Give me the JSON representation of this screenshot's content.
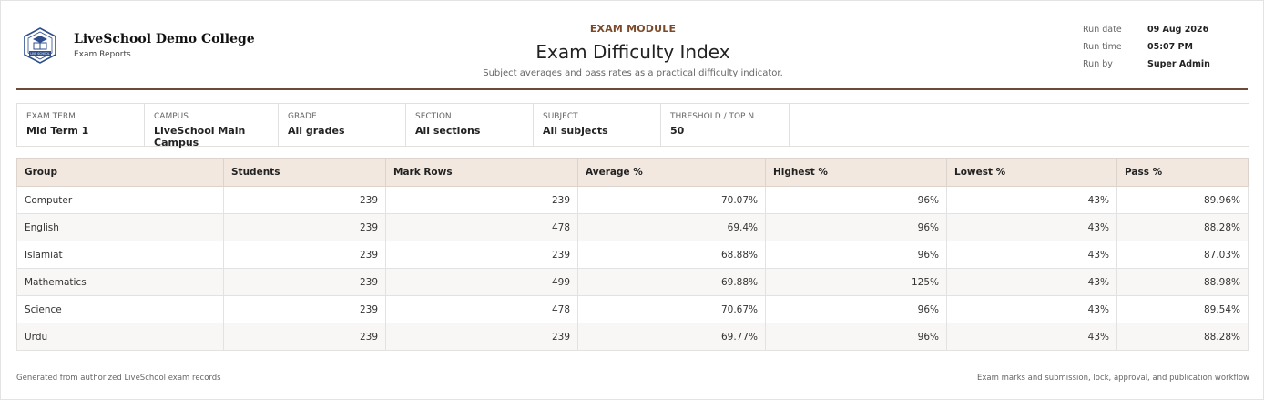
{
  "brand": {
    "name": "LiveSchool Demo College",
    "subtitle": "Exam Reports",
    "logo_icon": "school-crest-icon",
    "logo_text": "LIVE SCHOOL"
  },
  "header": {
    "module": "EXAM MODULE",
    "title": "Exam Difficulty Index",
    "subtitle": "Subject averages and pass rates as a practical difficulty indicator."
  },
  "run": {
    "items": [
      {
        "label": "Run date",
        "value": "09 Aug 2026"
      },
      {
        "label": "Run time",
        "value": "05:07 PM"
      },
      {
        "label": "Run by",
        "value": "Super Admin"
      }
    ]
  },
  "filters": [
    {
      "label": "Exam Term",
      "value": "Mid Term 1"
    },
    {
      "label": "Campus",
      "value": "LiveSchool Main Campus"
    },
    {
      "label": "Grade",
      "value": "All grades"
    },
    {
      "label": "Section",
      "value": "All sections"
    },
    {
      "label": "Subject",
      "value": "All subjects"
    },
    {
      "label": "Threshold / Top N",
      "value": "50"
    }
  ],
  "table": {
    "columns": [
      "Group",
      "Students",
      "Mark Rows",
      "Average %",
      "Highest %",
      "Lowest %",
      "Pass %"
    ],
    "rows": [
      [
        "Computer",
        "239",
        "239",
        "70.07%",
        "96%",
        "43%",
        "89.96%"
      ],
      [
        "English",
        "239",
        "478",
        "69.4%",
        "96%",
        "43%",
        "88.28%"
      ],
      [
        "Islamiat",
        "239",
        "239",
        "68.88%",
        "96%",
        "43%",
        "87.03%"
      ],
      [
        "Mathematics",
        "239",
        "499",
        "69.88%",
        "125%",
        "43%",
        "88.98%"
      ],
      [
        "Science",
        "239",
        "478",
        "70.67%",
        "96%",
        "43%",
        "89.54%"
      ],
      [
        "Urdu",
        "239",
        "239",
        "69.77%",
        "96%",
        "43%",
        "88.28%"
      ]
    ]
  },
  "footer": {
    "left": "Generated from authorized LiveSchool exam records",
    "right": "Exam marks and submission, lock, approval, and publication workflow"
  },
  "colors": {
    "accent": "#7a4a2a",
    "rule": "#6b4a36",
    "header_bg": "#f2e8e0",
    "logo_blue": "#2e4f8c"
  }
}
